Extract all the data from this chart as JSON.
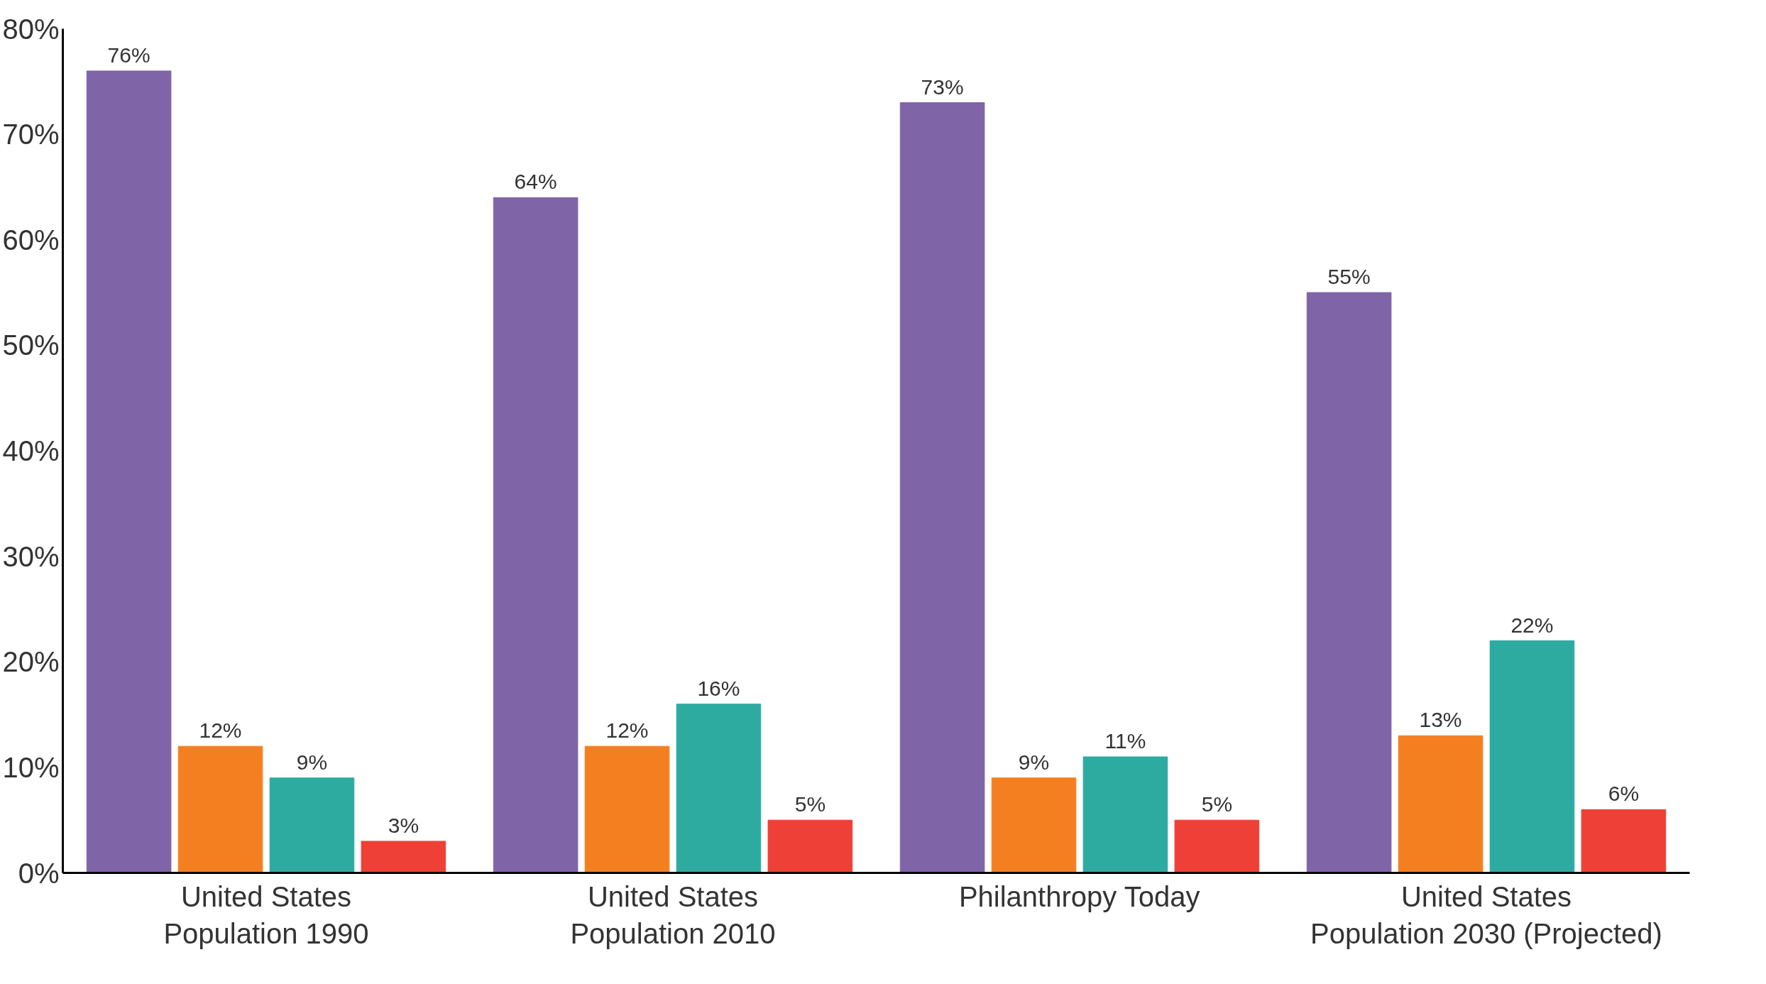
{
  "chart_data": {
    "type": "bar",
    "categories": [
      "United States\nPopulation 1990",
      "United States\nPopulation 2010",
      "Philanthropy Today",
      "United States\nPopulation 2030 (Projected)"
    ],
    "series": [
      {
        "color": "#8064a8",
        "values": [
          76,
          64,
          73,
          55
        ],
        "value_labels": [
          "76%",
          "64%",
          "73%",
          "55%"
        ]
      },
      {
        "color": "#f47f20",
        "values": [
          12,
          12,
          9,
          13
        ],
        "value_labels": [
          "12%",
          "12%",
          "9%",
          "13%"
        ]
      },
      {
        "color": "#2eaba0",
        "values": [
          9,
          16,
          11,
          22
        ],
        "value_labels": [
          "9%",
          "16%",
          "11%",
          "22%"
        ]
      },
      {
        "color": "#ee4036",
        "values": [
          3,
          5,
          5,
          6
        ],
        "value_labels": [
          "3%",
          "5%",
          "5%",
          "6%"
        ]
      }
    ],
    "ylim": [
      0,
      80
    ],
    "yticks": [
      {
        "value": 0,
        "label": "0%"
      },
      {
        "value": 10,
        "label": "10%"
      },
      {
        "value": 20,
        "label": "20%"
      },
      {
        "value": 30,
        "label": "30%"
      },
      {
        "value": 40,
        "label": "40%"
      },
      {
        "value": 50,
        "label": "50%"
      },
      {
        "value": 60,
        "label": "60%"
      },
      {
        "value": 70,
        "label": "70%"
      },
      {
        "value": 80,
        "label": "80%"
      }
    ],
    "grid": false
  }
}
